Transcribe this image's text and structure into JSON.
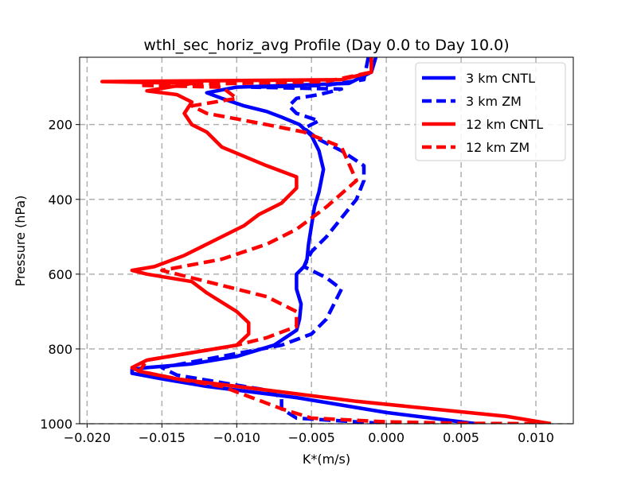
{
  "chart_data": {
    "type": "line",
    "title": "wthl_sec_horiz_avg Profile (Day 0.0 to Day 10.0)",
    "xlabel": "K*(m/s)",
    "ylabel": "Pressure (hPa)",
    "xlim": [
      -0.0205,
      0.0125
    ],
    "ylim": [
      1000,
      20
    ],
    "y_inverted": true,
    "grid": true,
    "legend_position": "top-right",
    "xticks": [
      -0.02,
      -0.015,
      -0.01,
      -0.005,
      0.0,
      0.005,
      0.01
    ],
    "xtick_labels": [
      "−0.020",
      "−0.015",
      "−0.010",
      "−0.005",
      "0.000",
      "0.005",
      "0.010"
    ],
    "yticks": [
      200,
      400,
      600,
      800,
      1000
    ],
    "ytick_labels": [
      "200",
      "400",
      "600",
      "800",
      "1000"
    ],
    "series": [
      {
        "name": "3 km CNTL",
        "color": "#0000ff",
        "dashed": false,
        "x": [
          -0.0007,
          -0.001,
          -0.0025,
          -0.01,
          -0.012,
          -0.011,
          -0.0095,
          -0.008,
          -0.007,
          -0.0058,
          -0.005,
          -0.0045,
          -0.0042,
          -0.0045,
          -0.0048,
          -0.005,
          -0.0052,
          -0.0053,
          -0.0055,
          -0.006,
          -0.006,
          -0.0057,
          -0.0058,
          -0.006,
          -0.0075,
          -0.01,
          -0.013,
          -0.016,
          -0.017,
          -0.017,
          -0.015,
          -0.012,
          -0.009,
          -0.006,
          -0.003,
          0.0,
          0.003,
          0.006
        ],
        "y": [
          20,
          60,
          90,
          100,
          115,
          130,
          150,
          165,
          180,
          200,
          230,
          270,
          320,
          380,
          420,
          470,
          520,
          560,
          580,
          600,
          640,
          680,
          720,
          750,
          790,
          820,
          840,
          850,
          855,
          865,
          880,
          900,
          915,
          930,
          950,
          970,
          985,
          1000
        ]
      },
      {
        "name": "3 km ZM",
        "color": "#0000ff",
        "dashed": true,
        "x": [
          -0.0012,
          -0.0015,
          -0.004,
          -0.009,
          -0.003,
          -0.0045,
          -0.006,
          -0.0065,
          -0.006,
          -0.0045,
          -0.0055,
          -0.0045,
          -0.003,
          -0.0015,
          -0.0015,
          -0.002,
          -0.003,
          -0.004,
          -0.005,
          -0.0055,
          -0.004,
          -0.003,
          -0.0035,
          -0.004,
          -0.005,
          -0.007,
          -0.011,
          -0.015,
          -0.014,
          -0.011,
          -0.008,
          -0.007,
          -0.007,
          -0.006,
          -0.004,
          0.0
        ],
        "y": [
          20,
          80,
          95,
          100,
          105,
          120,
          130,
          150,
          170,
          190,
          210,
          240,
          270,
          310,
          350,
          400,
          450,
          500,
          540,
          580,
          610,
          640,
          680,
          720,
          760,
          790,
          820,
          850,
          870,
          890,
          910,
          930,
          960,
          985,
          990,
          1000
        ]
      },
      {
        "name": "12 km CNTL",
        "color": "#ff0000",
        "dashed": false,
        "x": [
          -0.001,
          -0.001,
          -0.003,
          -0.019,
          -0.013,
          -0.016,
          -0.014,
          -0.013,
          -0.0135,
          -0.013,
          -0.012,
          -0.011,
          -0.008,
          -0.006,
          -0.006,
          -0.007,
          -0.0085,
          -0.0095,
          -0.0115,
          -0.0135,
          -0.0155,
          -0.017,
          -0.016,
          -0.013,
          -0.012,
          -0.01,
          -0.0092,
          -0.0092,
          -0.01,
          -0.013,
          -0.016,
          -0.017,
          -0.0165,
          -0.014,
          -0.01,
          -0.006,
          -0.002,
          0.003,
          0.008,
          0.011
        ],
        "y": [
          20,
          60,
          80,
          85,
          90,
          110,
          120,
          140,
          170,
          200,
          220,
          260,
          310,
          340,
          370,
          410,
          440,
          470,
          510,
          550,
          580,
          590,
          600,
          620,
          650,
          700,
          730,
          760,
          790,
          810,
          830,
          850,
          860,
          880,
          900,
          920,
          940,
          960,
          980,
          1000
        ]
      },
      {
        "name": "12 km ZM",
        "color": "#ff0000",
        "dashed": true,
        "x": [
          -0.001,
          -0.001,
          -0.004,
          -0.0165,
          -0.011,
          -0.01,
          -0.013,
          -0.012,
          -0.01,
          -0.008,
          -0.0055,
          -0.003,
          -0.002,
          -0.004,
          -0.006,
          -0.008,
          -0.011,
          -0.015,
          -0.013,
          -0.011,
          -0.008,
          -0.006,
          -0.006,
          -0.008,
          -0.01,
          -0.013,
          -0.016,
          -0.0165,
          -0.014,
          -0.011,
          -0.009,
          -0.007,
          -0.005,
          0.0,
          0.005,
          0.01
        ],
        "y": [
          20,
          60,
          85,
          95,
          100,
          130,
          150,
          170,
          185,
          200,
          220,
          260,
          350,
          420,
          480,
          520,
          560,
          590,
          610,
          630,
          660,
          700,
          740,
          770,
          790,
          810,
          830,
          860,
          880,
          900,
          930,
          960,
          985,
          995,
          999,
          1000
        ]
      }
    ]
  }
}
